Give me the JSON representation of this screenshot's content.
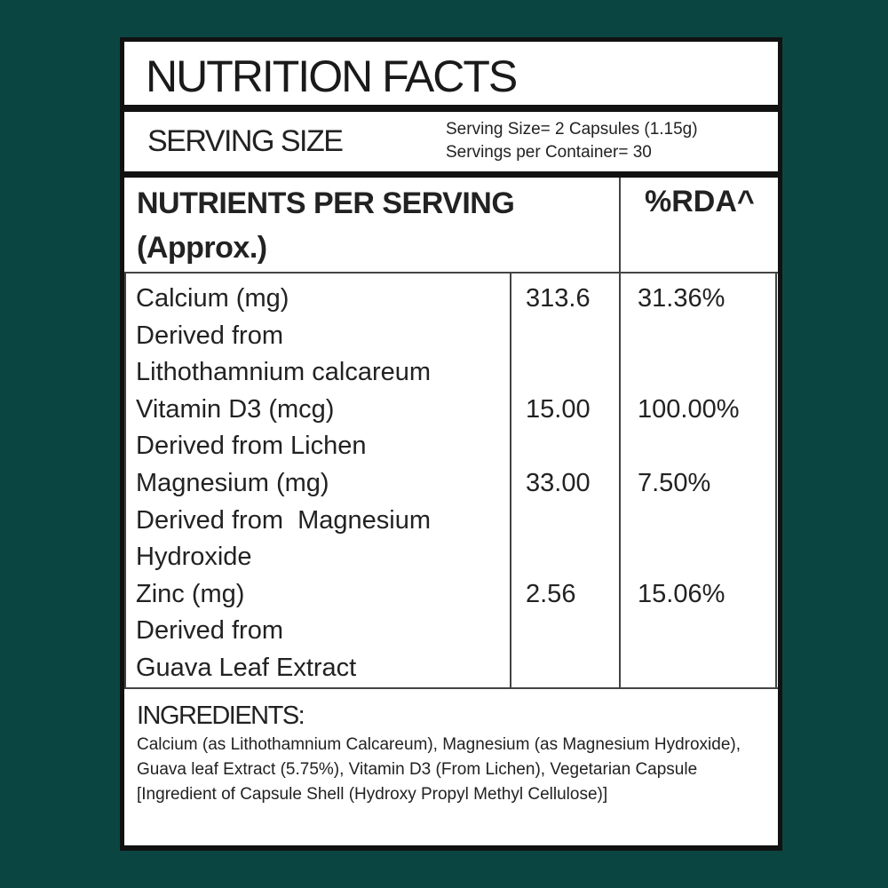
{
  "title": "NUTRITION FACTS",
  "serving": {
    "label": "SERVING SIZE",
    "size": "Serving Size= 2 Capsules (1.15g)",
    "per_container": "Servings per Container= 30"
  },
  "table": {
    "header_line1": "NUTRIENTS PER SERVING",
    "header_line2": "(Approx.)",
    "rda_header": "%RDA^",
    "rows": [
      {
        "name": "Calcium (mg)",
        "source": [
          "Derived from",
          "Lithothamnium calcareum"
        ],
        "amount": "313.6",
        "rda": "31.36%"
      },
      {
        "name": "Vitamin D3 (mcg)",
        "source": [
          "Derived from Lichen"
        ],
        "amount": "15.00",
        "rda": "100.00%"
      },
      {
        "name": "Magnesium (mg)",
        "source": [
          "Derived from  Magnesium",
          "Hydroxide"
        ],
        "amount": "33.00",
        "rda": "7.50%"
      },
      {
        "name": "Zinc (mg)",
        "source": [
          "Derived from",
          "Guava Leaf Extract"
        ],
        "amount": "2.56",
        "rda": "15.06%"
      }
    ]
  },
  "ingredients": {
    "heading": "INGREDIENTS:",
    "text": "Calcium (as Lithothamnium Calcareum), Magnesium (as Magnesium Hydroxide), Guava leaf Extract (5.75%), Vitamin D3 (From Lichen), Vegetarian Capsule [Ingredient of Capsule Shell (Hydroxy Propyl Methyl Cellulose)]"
  }
}
